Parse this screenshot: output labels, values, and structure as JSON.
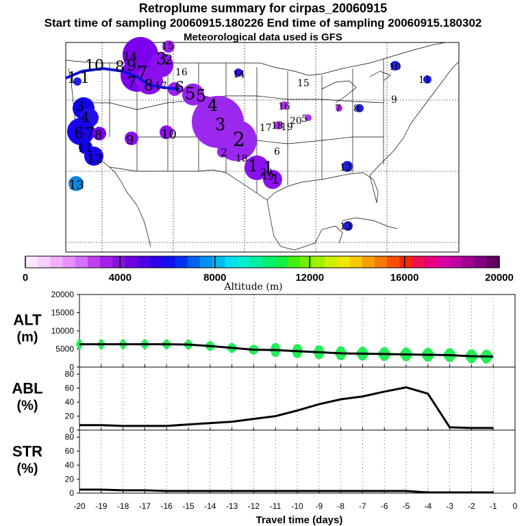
{
  "header": {
    "title": "Retroplume summary for cirpas_20060915",
    "sampling_line": "Start time of sampling 20060915.180226     End time of sampling 20060915.180302",
    "met_line": "Meteorological data used is GFS"
  },
  "map": {
    "labels": [
      "1",
      "1",
      "10",
      "8",
      "9",
      "7",
      "8",
      "7",
      "3",
      "2",
      "6",
      "5",
      "5",
      "4",
      "3",
      "2",
      "2",
      "1",
      "1",
      "1",
      "3",
      "4",
      "6",
      "7",
      "8",
      "9",
      "10",
      "11",
      "12",
      "13",
      "14",
      "15",
      "16",
      "17",
      "18",
      "19",
      "20",
      "5",
      "6",
      "7",
      "8",
      "9",
      "10",
      "11",
      "12",
      "13",
      "14",
      "15",
      "16",
      "17",
      "18",
      "19",
      "20"
    ]
  },
  "colorbar": {
    "tick_labels": [
      "0",
      "4000",
      "8000",
      "12000",
      "16000",
      "20000"
    ],
    "title": "Altitude (m)",
    "range": [
      0,
      20000
    ]
  },
  "chart_data": [
    {
      "type": "line",
      "panel": "ALT",
      "ylabel": "ALT",
      "yunit": "(m)",
      "ylim": [
        0,
        20000
      ],
      "yticks": [
        "20000",
        "15000",
        "10000",
        "5000",
        "0"
      ],
      "yticks_values": [
        20000,
        15000,
        10000,
        5000,
        0
      ],
      "x": [
        -20,
        -19,
        -18,
        -17,
        -16,
        -15,
        -14,
        -13,
        -12,
        -11,
        -10,
        -9,
        -8,
        -7,
        -6,
        -5,
        -4,
        -3,
        -2,
        -1
      ],
      "values": [
        6300,
        6300,
        6300,
        6300,
        6300,
        6200,
        5800,
        5300,
        4800,
        4700,
        4400,
        4100,
        3800,
        3700,
        3600,
        3500,
        3400,
        3300,
        3000,
        2900
      ],
      "scatter_color": "#22ee55"
    },
    {
      "type": "line",
      "panel": "ABL",
      "ylabel": "ABL",
      "yunit": "(%)",
      "ylim": [
        0,
        90
      ],
      "yticks": [
        "80",
        "60",
        "40",
        "20",
        "0"
      ],
      "yticks_values": [
        80,
        60,
        40,
        20,
        0
      ],
      "x": [
        -20,
        -19,
        -18,
        -17,
        -16,
        -15,
        -14,
        -13,
        -12,
        -11,
        -10,
        -9,
        -8,
        -7,
        -6,
        -5,
        -4,
        -3,
        -2,
        -1
      ],
      "values": [
        7,
        7,
        6,
        6,
        6,
        8,
        10,
        12,
        16,
        20,
        28,
        37,
        44,
        48,
        55,
        61,
        52,
        4,
        3,
        3
      ]
    },
    {
      "type": "line",
      "panel": "STR",
      "ylabel": "STR",
      "yunit": "(%)",
      "ylim": [
        0,
        90
      ],
      "yticks": [
        "80",
        "60",
        "40",
        "20",
        "0"
      ],
      "yticks_values": [
        80,
        60,
        40,
        20,
        0
      ],
      "x": [
        -20,
        -19,
        -18,
        -17,
        -16,
        -15,
        -14,
        -13,
        -12,
        -11,
        -10,
        -9,
        -8,
        -7,
        -6,
        -5,
        -4,
        -3,
        -2,
        -1
      ],
      "values": [
        5,
        5,
        4,
        4,
        3,
        3,
        3,
        3,
        3,
        3,
        3,
        3,
        3,
        3,
        3,
        3,
        1,
        1,
        1,
        1
      ]
    }
  ],
  "xaxis": {
    "title": "Travel time (days)",
    "tick_labels": [
      "-20",
      "-19",
      "-18",
      "-17",
      "-16",
      "-15",
      "-14",
      "-13",
      "-12",
      "-11",
      "-10",
      "-9",
      "-8",
      "-7",
      "-6",
      "-5",
      "-4",
      "-3",
      "-2",
      "-1",
      "0"
    ],
    "range": [
      -20,
      0
    ]
  }
}
